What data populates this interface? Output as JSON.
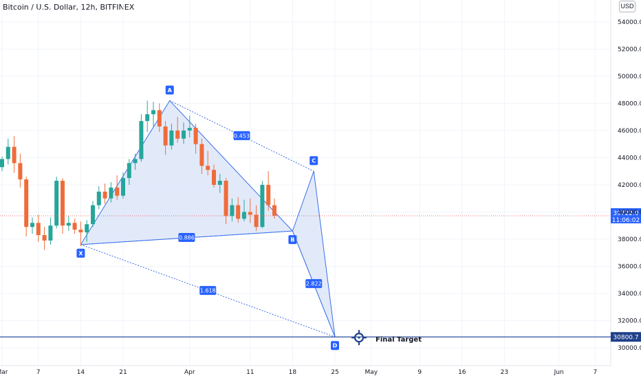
{
  "title": "Bitcoin / U.S. Dollar, 12h, BITFINEX",
  "currency_badge": "USD",
  "colors": {
    "up": "#26a69a",
    "down": "#ef6c3a",
    "pattern_line": "#3a6ee8",
    "pattern_fill": "#dbe5f9",
    "label_bg": "#2962ff",
    "grid": "#f0f3fa"
  },
  "price_tags": {
    "last_price": "39722.0",
    "countdown": "11:06:02",
    "target": "30800.7"
  },
  "target_label": "Final Target",
  "chart_data": {
    "type": "candlestick",
    "ylim": [
      29200,
      55000
    ],
    "y_ticks": [
      "30000.0",
      "32000.0",
      "34000.0",
      "36000.0",
      "38000.0",
      "40000.0",
      "42000.0",
      "44000.0",
      "46000.0",
      "48000.0",
      "50000.0",
      "52000.0",
      "54000.0"
    ],
    "x_ticks": [
      {
        "label": "Mar",
        "x": 0
      },
      {
        "label": "7",
        "x": 6
      },
      {
        "label": "14",
        "x": 13
      },
      {
        "label": "21",
        "x": 20
      },
      {
        "label": "Apr",
        "x": 31
      },
      {
        "label": "11",
        "x": 41
      },
      {
        "label": "18",
        "x": 48
      },
      {
        "label": "25",
        "x": 55
      },
      {
        "label": "May",
        "x": 61
      },
      {
        "label": "9",
        "x": 69
      },
      {
        "label": "16",
        "x": 76
      },
      {
        "label": "23",
        "x": 83
      },
      {
        "label": "Jun",
        "x": 92
      },
      {
        "label": "7",
        "x": 98
      }
    ],
    "last_price": 39722.0,
    "target_price": 30800.7,
    "pattern": {
      "points": [
        {
          "name": "X",
          "x": 13.0,
          "price": 37600
        },
        {
          "name": "A",
          "x": 27.7,
          "price": 48200
        },
        {
          "name": "B",
          "x": 48.0,
          "price": 38600
        },
        {
          "name": "C",
          "x": 51.5,
          "price": 43000
        },
        {
          "name": "D",
          "x": 55.0,
          "price": 30800
        }
      ],
      "ratios": [
        {
          "label": "0.453",
          "of": "A-C"
        },
        {
          "label": "0.886",
          "of": "X-B"
        },
        {
          "label": "1.618",
          "of": "X-D"
        },
        {
          "label": "2.822",
          "of": "B-D"
        }
      ]
    },
    "candles": [
      [
        43300,
        44100,
        43000,
        43900
      ],
      [
        43900,
        45400,
        43500,
        44800
      ],
      [
        44800,
        45600,
        42900,
        43600
      ],
      [
        43600,
        44300,
        41800,
        42400
      ],
      [
        42400,
        42600,
        38200,
        38900
      ],
      [
        38900,
        39600,
        38400,
        39200
      ],
      [
        39200,
        39800,
        37800,
        38300
      ],
      [
        38300,
        38900,
        37200,
        37900
      ],
      [
        37900,
        39600,
        37600,
        39000
      ],
      [
        39000,
        42600,
        38800,
        42300
      ],
      [
        42300,
        42500,
        38400,
        39000
      ],
      [
        39000,
        39700,
        38600,
        39200
      ],
      [
        39200,
        39500,
        38400,
        38700
      ],
      [
        38700,
        39300,
        37500,
        38500
      ],
      [
        38500,
        39400,
        37800,
        39100
      ],
      [
        39100,
        40800,
        38900,
        40500
      ],
      [
        40500,
        41900,
        40200,
        41500
      ],
      [
        41500,
        42100,
        40600,
        41000
      ],
      [
        41000,
        42200,
        40700,
        41800
      ],
      [
        41800,
        42700,
        40900,
        41200
      ],
      [
        41200,
        42900,
        41000,
        42500
      ],
      [
        42500,
        43900,
        42000,
        43600
      ],
      [
        43600,
        44300,
        43100,
        43900
      ],
      [
        43900,
        47200,
        43700,
        46700
      ],
      [
        46700,
        48200,
        45900,
        47200
      ],
      [
        47200,
        48100,
        46300,
        47500
      ],
      [
        47500,
        48000,
        45900,
        46300
      ],
      [
        46300,
        46700,
        44200,
        44900
      ],
      [
        44900,
        46500,
        44600,
        46000
      ],
      [
        46000,
        47000,
        45100,
        45400
      ],
      [
        45400,
        46600,
        45000,
        46000
      ],
      [
        46000,
        47100,
        45500,
        46200
      ],
      [
        46200,
        46500,
        44300,
        45000
      ],
      [
        45000,
        45400,
        42800,
        43400
      ],
      [
        43400,
        44500,
        42700,
        43100
      ],
      [
        43100,
        43500,
        41800,
        42000
      ],
      [
        42000,
        42800,
        41400,
        42300
      ],
      [
        42300,
        42500,
        39100,
        39700
      ],
      [
        39700,
        41000,
        39300,
        40500
      ],
      [
        40500,
        41100,
        39200,
        39500
      ],
      [
        39500,
        40900,
        39300,
        40000
      ],
      [
        40000,
        41000,
        39200,
        39800
      ],
      [
        39800,
        40500,
        38600,
        38900
      ],
      [
        38900,
        42300,
        38800,
        42000
      ],
      [
        42000,
        43000,
        40100,
        40500
      ],
      [
        40500,
        41000,
        39500,
        39722
      ]
    ]
  }
}
